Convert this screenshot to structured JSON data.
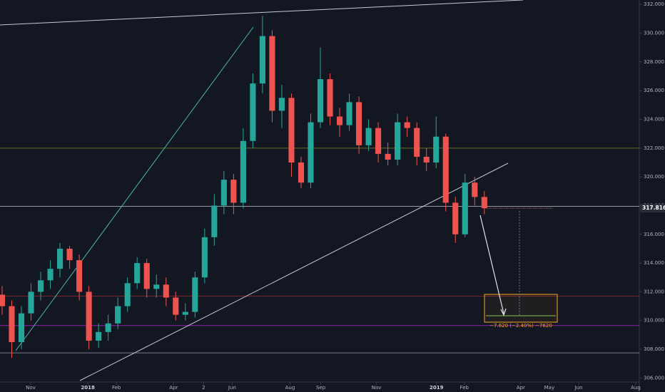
{
  "chart_data": {
    "type": "candlestick",
    "open": [
      311.8,
      311.0,
      308.5,
      310.5,
      312.0,
      312.8,
      313.6,
      315.0,
      314.2,
      312.0,
      308.6,
      309.2,
      309.8,
      311.0,
      312.6,
      314.0,
      312.2,
      312.5,
      311.6,
      310.4,
      310.6,
      313.0,
      315.8,
      318.0,
      319.8,
      318.2,
      322.5,
      326.5,
      329.8,
      324.6,
      325.5,
      321.0,
      319.6,
      323.8,
      326.8,
      324.2,
      323.6,
      325.2,
      322.2,
      323.4,
      321.6,
      321.2,
      323.8,
      323.4,
      321.4,
      321.0,
      322.8,
      318.2,
      316.0,
      319.6,
      318.6
    ],
    "high": [
      312.4,
      311.4,
      311.0,
      312.6,
      313.4,
      314.2,
      315.4,
      315.2,
      314.6,
      312.4,
      309.8,
      310.4,
      311.6,
      313.0,
      314.4,
      314.3,
      313.2,
      313.0,
      312.0,
      311.2,
      313.4,
      316.4,
      318.8,
      320.4,
      320.2,
      323.4,
      327.2,
      331.2,
      330.2,
      326.4,
      325.8,
      321.4,
      324.4,
      329.0,
      327.2,
      324.8,
      325.8,
      325.6,
      324.0,
      323.8,
      322.4,
      324.4,
      324.2,
      323.8,
      322.0,
      324.2,
      323.0,
      318.6,
      320.2,
      320.0,
      319.0
    ],
    "low": [
      310.4,
      307.4,
      308.0,
      310.0,
      311.4,
      312.2,
      313.0,
      313.6,
      311.4,
      308.0,
      308.1,
      308.6,
      309.4,
      310.6,
      312.2,
      311.6,
      311.6,
      311.0,
      310.0,
      310.0,
      310.2,
      312.6,
      315.2,
      317.4,
      317.4,
      317.8,
      322.0,
      325.8,
      323.8,
      323.4,
      320.0,
      319.2,
      319.2,
      323.4,
      323.6,
      322.8,
      323.2,
      321.6,
      321.8,
      321.0,
      320.8,
      320.8,
      322.8,
      320.8,
      320.4,
      320.6,
      317.6,
      315.4,
      315.8,
      318.0,
      317.4
    ],
    "close": [
      311.0,
      308.5,
      310.5,
      312.0,
      312.8,
      313.6,
      315.0,
      314.2,
      312.0,
      308.6,
      309.2,
      309.8,
      311.0,
      312.6,
      314.0,
      312.2,
      312.5,
      311.6,
      310.4,
      310.6,
      313.0,
      315.8,
      318.0,
      319.8,
      318.2,
      322.5,
      326.5,
      329.8,
      324.6,
      325.5,
      321.0,
      319.6,
      323.8,
      326.8,
      324.2,
      323.6,
      325.2,
      322.2,
      323.4,
      321.6,
      321.2,
      323.8,
      323.4,
      321.4,
      321.0,
      322.8,
      318.2,
      316.0,
      319.6,
      318.6,
      317.816
    ],
    "up_color": "#26a69a",
    "down_color": "#ef5350",
    "xlim": [
      -0.22,
      66.07
    ],
    "xticks": [
      {
        "value": 2.96,
        "label": "Nov"
      },
      {
        "value": 8.89,
        "label": "2018"
      },
      {
        "value": 11.85,
        "label": "Feb"
      },
      {
        "value": 17.78,
        "label": "Apr"
      },
      {
        "value": 20.89,
        "label": "2"
      },
      {
        "value": 23.85,
        "label": "Jun"
      },
      {
        "value": 29.85,
        "label": "Aug"
      },
      {
        "value": 33.04,
        "label": "Sep"
      },
      {
        "value": 38.81,
        "label": "Nov"
      },
      {
        "value": 45.04,
        "label": "2019"
      },
      {
        "value": 47.93,
        "label": "Feb"
      },
      {
        "value": 53.78,
        "label": "Apr"
      },
      {
        "value": 56.74,
        "label": "May"
      },
      {
        "value": 59.78,
        "label": "Jun"
      },
      {
        "value": 65.7,
        "label": "Aug"
      }
    ],
    "ylim": [
      305.72,
      332.31
    ],
    "yticks": [
      {
        "value": 306,
        "label": "306.000"
      },
      {
        "value": 308,
        "label": "308.000"
      },
      {
        "value": 310,
        "label": "310.000"
      },
      {
        "value": 312,
        "label": "312.000"
      },
      {
        "value": 314,
        "label": "314.000"
      },
      {
        "value": 316,
        "label": "316.000"
      },
      {
        "value": 318,
        "label": "318.000"
      },
      {
        "value": 320,
        "label": "320.000"
      },
      {
        "value": 322,
        "label": "322.000"
      },
      {
        "value": 324,
        "label": "324.000"
      },
      {
        "value": 326,
        "label": "326.000"
      },
      {
        "value": 328,
        "label": "328.000"
      },
      {
        "value": 330,
        "label": "330.000"
      },
      {
        "value": 332,
        "label": "332.000"
      }
    ],
    "levels": [
      {
        "value": 322.0,
        "color": "#6b6b2a"
      },
      {
        "value": 317.95,
        "color": "#9598a1"
      },
      {
        "value": 311.7,
        "color": "#7a2430"
      },
      {
        "value": 309.65,
        "color": "#8e24aa"
      },
      {
        "value": 307.75,
        "color": "#787b86"
      }
    ],
    "annotation": "−7.620 (−2.40%) −7620"
  }
}
